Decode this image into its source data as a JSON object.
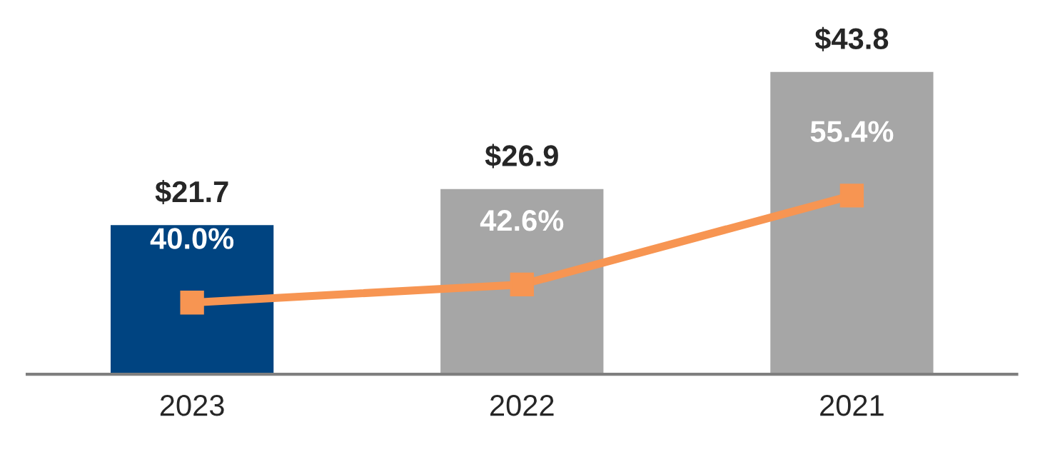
{
  "chart_data": {
    "type": "bar",
    "categories": [
      "2023",
      "2022",
      "2021"
    ],
    "series": [
      {
        "colors": [
          "#004481",
          "#a6a6a6",
          "#a6a6a6"
        ],
        "values": [
          21.7,
          26.9,
          43.8
        ],
        "value_labels": [
          "$21.7",
          "$26.9",
          "$43.8"
        ]
      },
      {
        "type": "line",
        "axis": "y2",
        "color": "#f79552",
        "values": [
          40.0,
          42.6,
          55.4
        ],
        "value_labels": [
          "40.0%",
          "42.6%",
          "55.4%"
        ],
        "marker": "square",
        "line_style": "solid"
      }
    ],
    "tick_labels": "x",
    "grid": false,
    "legend": false
  }
}
